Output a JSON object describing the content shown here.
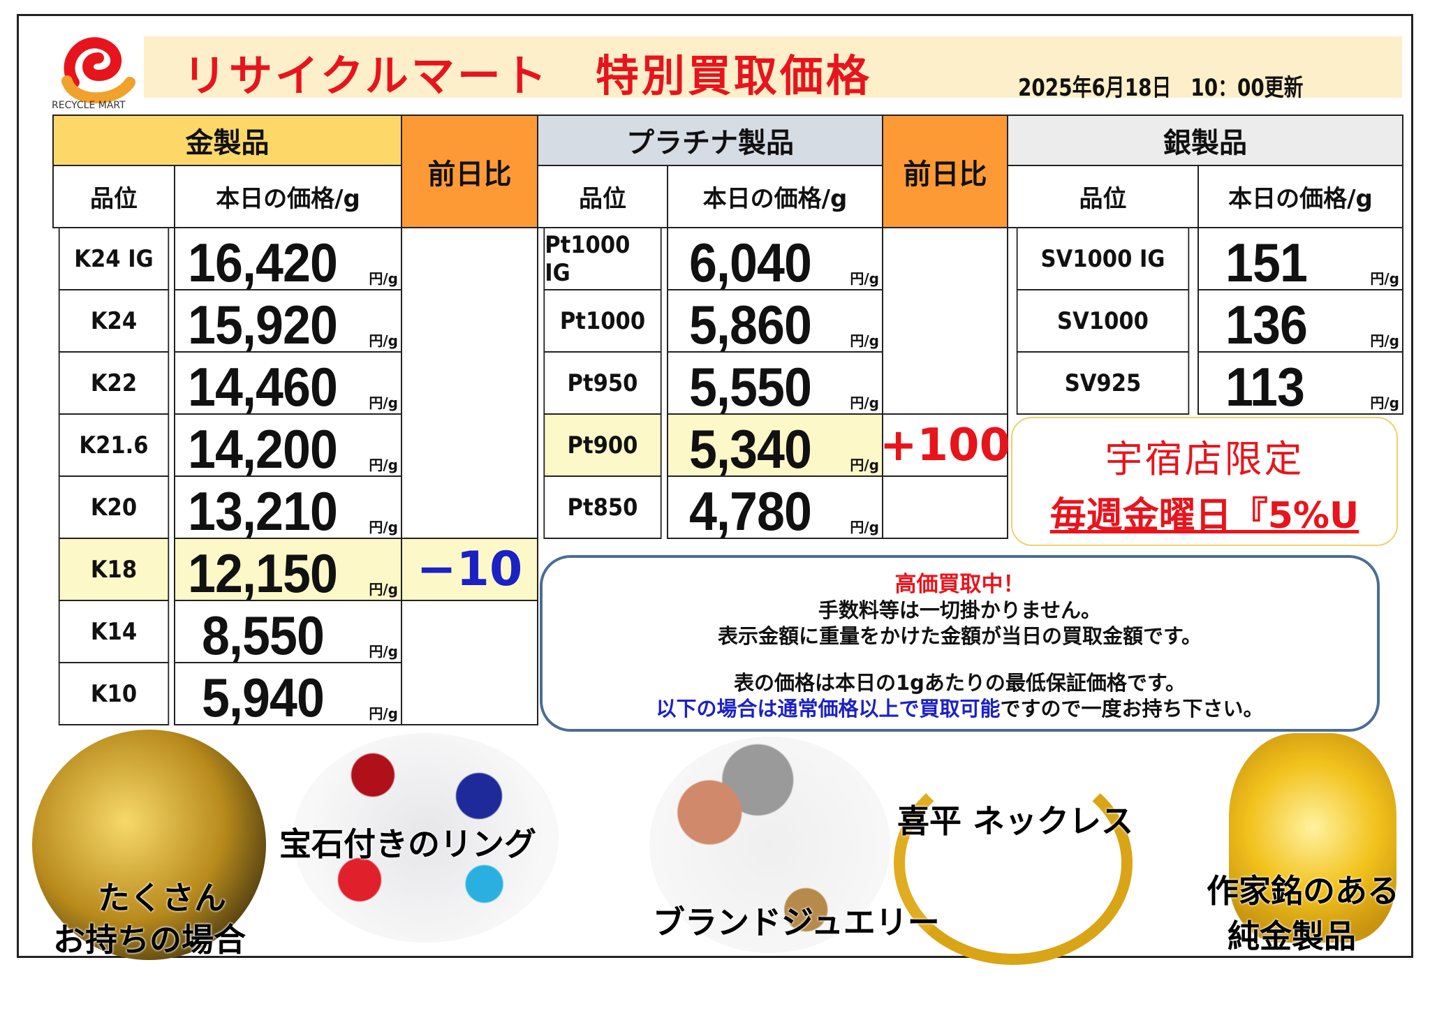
{
  "header": {
    "logo_text": "RECYCLE MART",
    "title": "リサイクルマート　特別買取価格",
    "updated": "2025年6月18日　10：00更新"
  },
  "colors": {
    "gold_header": "#fdd868",
    "diff_header": "#fd9a35",
    "platinum_header": "#d6dce4",
    "silver_header": "#ececec",
    "highlight": "#fdf8c8",
    "red": "#e8141c",
    "blue": "#1b21c4"
  },
  "gold": {
    "title": "金製品",
    "col_grade": "品位",
    "col_price": "本日の価格/g",
    "diff_label": "前日比",
    "unit": "円/g",
    "rows": [
      {
        "grade": "K24 IG",
        "price": "16,420",
        "diff": ""
      },
      {
        "grade": "K24",
        "price": "15,920",
        "diff": ""
      },
      {
        "grade": "K22",
        "price": "14,460",
        "diff": ""
      },
      {
        "grade": "K21.6",
        "price": "14,200",
        "diff": ""
      },
      {
        "grade": "K20",
        "price": "13,210",
        "diff": ""
      },
      {
        "grade": "K18",
        "price": "12,150",
        "diff": "−10",
        "highlight": true
      },
      {
        "grade": "K14",
        "price": "8,550",
        "diff": ""
      },
      {
        "grade": "K10",
        "price": "5,940",
        "diff": ""
      }
    ]
  },
  "platinum": {
    "title": "プラチナ製品",
    "col_grade": "品位",
    "col_price": "本日の価格/g",
    "diff_label": "前日比",
    "unit": "円/g",
    "rows": [
      {
        "grade": "Pt1000 IG",
        "price": "6,040",
        "diff": ""
      },
      {
        "grade": "Pt1000",
        "price": "5,860",
        "diff": ""
      },
      {
        "grade": "Pt950",
        "price": "5,550",
        "diff": ""
      },
      {
        "grade": "Pt900",
        "price": "5,340",
        "diff": "+100",
        "highlight": true
      },
      {
        "grade": "Pt850",
        "price": "4,780",
        "diff": ""
      }
    ]
  },
  "silver": {
    "title": "銀製品",
    "col_grade": "品位",
    "col_price": "本日の価格/g",
    "unit": "円/g",
    "rows": [
      {
        "grade": "SV1000 IG",
        "price": "151"
      },
      {
        "grade": "SV1000",
        "price": "136"
      },
      {
        "grade": "SV925",
        "price": "113"
      }
    ]
  },
  "promo": {
    "line1": "宇宿店限定",
    "line2": "毎週金曜日『5%U"
  },
  "info": {
    "headline": "高価買取中！",
    "line1": "手数料等は一切掛かりません。",
    "line2": "表示金額に重量をかけた金額が当日の買取金額です。",
    "line3": "表の価格は本日の1gあたりの最低保証価格です。",
    "line4_blue": "以下の場合は通常価格以上で買取可能",
    "line4_rest": "ですので一度お持ち下さい。"
  },
  "captions": {
    "many": [
      "たくさん",
      "お持ちの場合"
    ],
    "rings": "宝石付きのリング",
    "brand": "ブランドジュエリー",
    "kihei": "喜平 ネックレス",
    "artist": [
      "作家銘のある",
      "純金製品"
    ]
  }
}
